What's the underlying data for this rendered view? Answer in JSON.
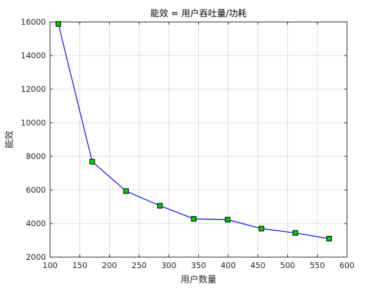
{
  "chart_data": {
    "type": "line",
    "title": "能效 = 用户吞吐量/功耗",
    "xlabel": "用户数量",
    "ylabel": "能效",
    "xlim": [
      100,
      600
    ],
    "ylim": [
      2000,
      16000
    ],
    "xticks": [
      100,
      150,
      200,
      250,
      300,
      350,
      400,
      450,
      500,
      550,
      600
    ],
    "yticks": [
      2000,
      4000,
      6000,
      8000,
      10000,
      12000,
      14000,
      16000
    ],
    "grid": true,
    "series": [
      {
        "x": [
          114,
          171,
          228,
          285,
          342,
          399,
          456,
          513,
          570
        ],
        "y": [
          15880,
          7680,
          5930,
          5060,
          4280,
          4230,
          3700,
          3440,
          3100
        ],
        "line_color": "#0000ff",
        "marker": "square",
        "marker_fill": "#00cc00",
        "marker_edge": "#000000"
      }
    ]
  }
}
